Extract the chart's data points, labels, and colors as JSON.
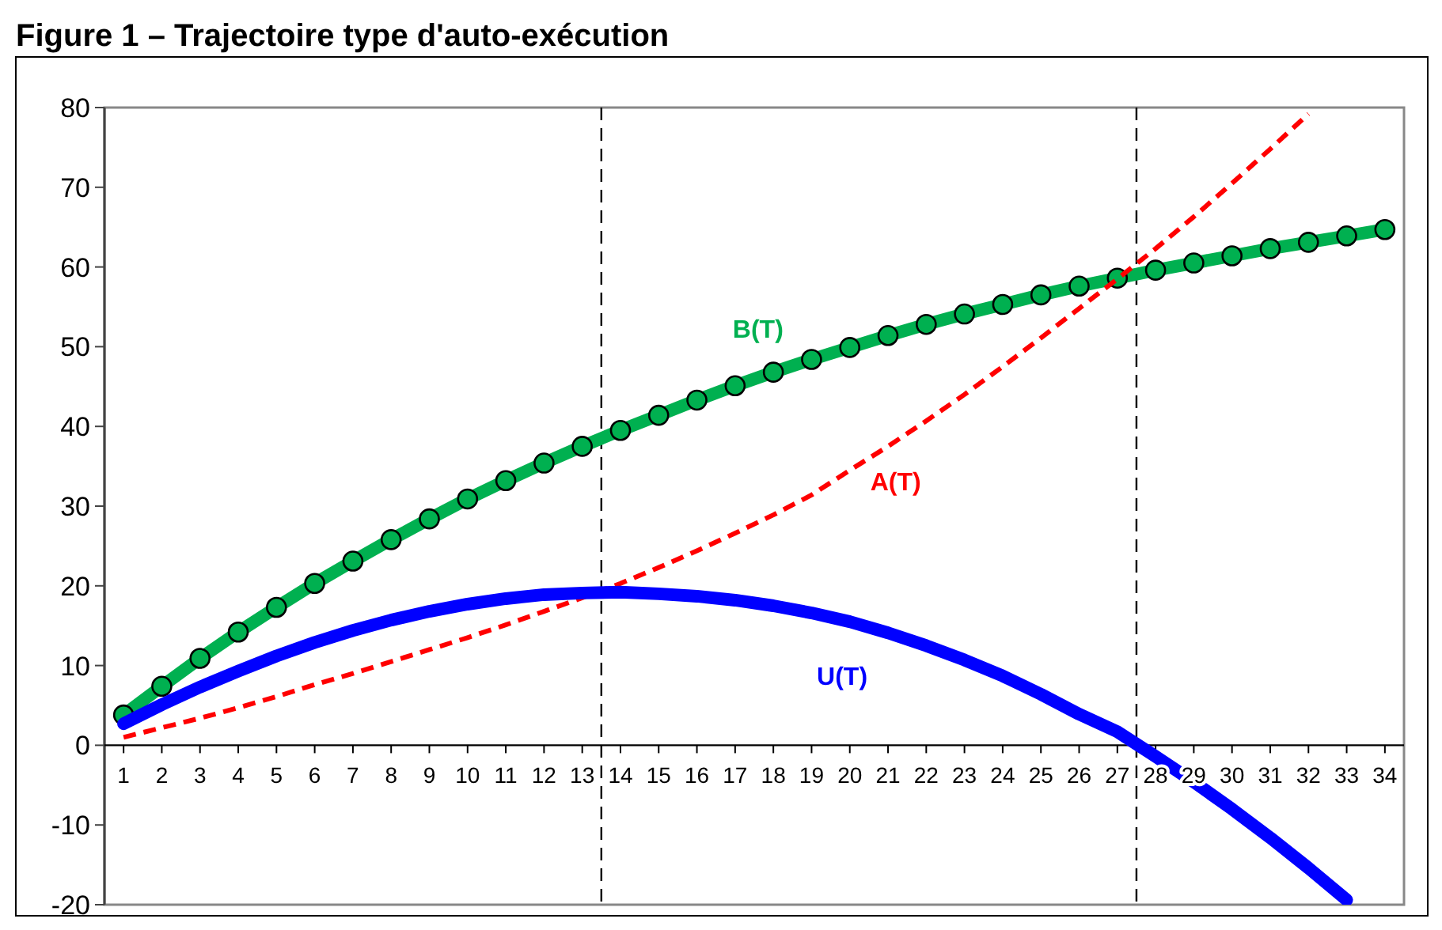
{
  "chart_data": {
    "type": "line",
    "title": "Figure 1 – Trajectoire type d'auto-exécution",
    "x": [
      1,
      2,
      3,
      4,
      5,
      6,
      7,
      8,
      9,
      10,
      11,
      12,
      13,
      14,
      15,
      16,
      17,
      18,
      19,
      20,
      21,
      22,
      23,
      24,
      25,
      26,
      27,
      28,
      29,
      30,
      31,
      32,
      33,
      34
    ],
    "xlim": [
      0.5,
      34.5
    ],
    "xticks": [
      1,
      2,
      3,
      4,
      5,
      6,
      7,
      8,
      9,
      10,
      11,
      12,
      13,
      14,
      15,
      16,
      17,
      18,
      19,
      20,
      21,
      22,
      23,
      24,
      25,
      26,
      27,
      28,
      29,
      30,
      31,
      32,
      33,
      34
    ],
    "ylim": [
      -20,
      80
    ],
    "yticks": [
      -20,
      -10,
      0,
      10,
      20,
      30,
      40,
      50,
      60,
      70,
      80
    ],
    "series": [
      {
        "name": "B(T)",
        "color": "#00b050",
        "marker": "circle",
        "values": [
          3.8,
          7.4,
          10.9,
          14.2,
          17.3,
          20.3,
          23.1,
          25.8,
          28.4,
          30.9,
          33.2,
          35.4,
          37.5,
          39.5,
          41.4,
          43.3,
          45.1,
          46.8,
          48.4,
          49.9,
          51.4,
          52.8,
          54.1,
          55.3,
          56.5,
          57.6,
          58.6,
          59.6,
          60.5,
          61.4,
          62.3,
          63.1,
          63.9,
          64.7
        ]
      },
      {
        "name": "A(T)",
        "color": "#ff0000",
        "line_style": "dashed",
        "values": [
          1.0,
          2.2,
          3.4,
          4.7,
          6.1,
          7.6,
          9.0,
          10.5,
          12.0,
          13.5,
          15.1,
          16.8,
          18.5,
          20.3,
          22.3,
          24.4,
          26.6,
          28.9,
          31.4,
          34.5,
          37.5,
          40.7,
          44.0,
          47.5,
          51.1,
          54.8,
          58.5,
          62.3,
          66.3,
          70.5,
          74.8,
          79.2,
          null,
          null
        ]
      },
      {
        "name": "U(T)",
        "color": "#0000ff",
        "values": [
          2.7,
          5.1,
          7.3,
          9.3,
          11.2,
          12.9,
          14.4,
          15.7,
          16.8,
          17.7,
          18.4,
          18.9,
          19.1,
          19.2,
          19.0,
          18.7,
          18.2,
          17.5,
          16.6,
          15.5,
          14.1,
          12.5,
          10.7,
          8.7,
          6.4,
          3.9,
          1.7,
          -1.4,
          -4.6,
          -8.0,
          -11.6,
          -15.4,
          -19.4,
          null
        ]
      }
    ],
    "ref_lines": [
      {
        "axis": "x",
        "value": 13.5,
        "color": "#000000",
        "line_style": "dashed"
      },
      {
        "axis": "x",
        "value": 27.5,
        "color": "#000000",
        "line_style": "dashed"
      }
    ]
  }
}
